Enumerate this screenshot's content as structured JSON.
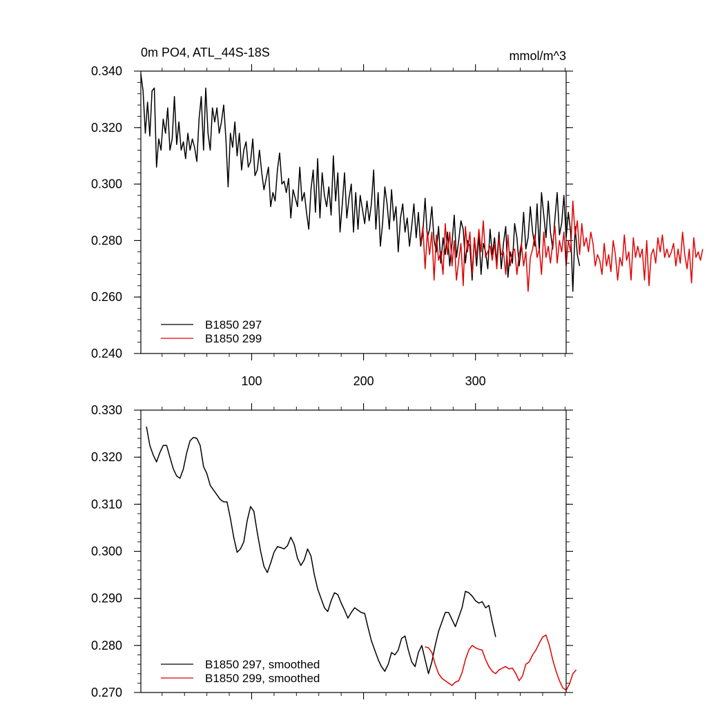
{
  "chart_data": [
    {
      "type": "line",
      "title": "0m PO4, ATL_44S-18S",
      "units": "mmol/m^3",
      "xlim": [
        1,
        381
      ],
      "ylim": [
        0.24,
        0.34
      ],
      "x_ticks": [
        100,
        200,
        300
      ],
      "y_ticks": [
        "0.240",
        "0.260",
        "0.280",
        "0.300",
        "0.320",
        "0.340"
      ],
      "legend_position": "bottom-left",
      "series": [
        {
          "name": "B1850 297",
          "color": "#000000",
          "x_start": 1,
          "x_step": 2,
          "values": [
            0.339,
            0.333,
            0.318,
            0.329,
            0.317,
            0.333,
            0.334,
            0.306,
            0.316,
            0.312,
            0.323,
            0.318,
            0.327,
            0.312,
            0.316,
            0.331,
            0.314,
            0.322,
            0.312,
            0.315,
            0.309,
            0.318,
            0.312,
            0.316,
            0.313,
            0.308,
            0.323,
            0.331,
            0.312,
            0.334,
            0.318,
            0.312,
            0.327,
            0.322,
            0.327,
            0.318,
            0.322,
            0.328,
            0.316,
            0.299,
            0.318,
            0.313,
            0.322,
            0.31,
            0.318,
            0.305,
            0.312,
            0.315,
            0.306,
            0.308,
            0.316,
            0.303,
            0.305,
            0.312,
            0.304,
            0.298,
            0.302,
            0.306,
            0.292,
            0.297,
            0.294,
            0.305,
            0.311,
            0.3,
            0.301,
            0.297,
            0.302,
            0.288,
            0.298,
            0.295,
            0.292,
            0.306,
            0.294,
            0.297,
            0.29,
            0.284,
            0.298,
            0.305,
            0.29,
            0.309,
            0.288,
            0.304,
            0.296,
            0.292,
            0.299,
            0.289,
            0.31,
            0.294,
            0.304,
            0.283,
            0.293,
            0.304,
            0.288,
            0.295,
            0.3,
            0.283,
            0.297,
            0.284,
            0.296,
            0.291,
            0.286,
            0.294,
            0.287,
            0.293,
            0.305,
            0.284,
            0.297,
            0.278,
            0.286,
            0.299,
            0.293,
            0.284,
            0.298,
            0.287,
            0.292,
            0.276,
            0.288,
            0.293,
            0.283,
            0.288,
            0.278,
            0.285,
            0.293,
            0.281,
            0.29,
            0.278,
            0.283,
            0.295,
            0.281,
            0.284,
            0.292,
            0.28,
            0.276,
            0.285,
            0.272,
            0.281,
            0.275,
            0.283,
            0.271,
            0.279,
            0.289,
            0.274,
            0.28,
            0.287,
            0.284,
            0.272,
            0.28,
            0.278,
            0.266,
            0.281,
            0.271,
            0.282,
            0.268,
            0.279,
            0.276,
            0.27,
            0.284,
            0.275,
            0.281,
            0.272,
            0.283,
            0.27,
            0.279,
            0.285,
            0.267,
            0.276,
            0.272,
            0.286,
            0.281,
            0.271,
            0.278,
            0.29,
            0.277,
            0.281,
            0.292,
            0.283,
            0.278,
            0.293,
            0.276,
            0.297,
            0.289,
            0.281,
            0.294,
            0.283,
            0.277,
            0.288,
            0.297,
            0.282,
            0.286,
            0.296,
            0.281,
            0.29,
            0.283,
            0.262,
            0.285,
            0.275,
            0.271
          ]
        },
        {
          "name": "B1850 299",
          "color": "#e00000",
          "x_start": 251,
          "x_step": 2,
          "values": [
            0.279,
            0.285,
            0.27,
            0.283,
            0.275,
            0.283,
            0.266,
            0.282,
            0.273,
            0.276,
            0.268,
            0.286,
            0.275,
            0.283,
            0.271,
            0.28,
            0.266,
            0.273,
            0.279,
            0.264,
            0.285,
            0.276,
            0.283,
            0.268,
            0.281,
            0.274,
            0.284,
            0.276,
            0.287,
            0.274,
            0.276,
            0.278,
            0.273,
            0.279,
            0.27,
            0.281,
            0.275,
            0.276,
            0.268,
            0.282,
            0.271,
            0.276,
            0.277,
            0.268,
            0.275,
            0.279,
            0.271,
            0.276,
            0.262,
            0.274,
            0.277,
            0.282,
            0.274,
            0.277,
            0.268,
            0.283,
            0.274,
            0.278,
            0.272,
            0.279,
            0.285,
            0.272,
            0.28,
            0.276,
            0.283,
            0.271,
            0.28,
            0.276,
            0.294,
            0.282,
            0.287,
            0.275,
            0.286,
            0.278,
            0.281,
            0.276,
            0.283,
            0.279,
            0.271,
            0.275,
            0.273,
            0.268,
            0.279,
            0.271,
            0.275,
            0.269,
            0.28,
            0.275,
            0.266,
            0.274,
            0.271,
            0.282,
            0.273,
            0.276,
            0.266,
            0.281,
            0.274,
            0.278,
            0.274,
            0.277,
            0.266,
            0.28,
            0.264,
            0.275,
            0.277,
            0.272,
            0.281,
            0.276,
            0.282,
            0.274,
            0.277,
            0.274,
            0.276,
            0.279,
            0.271,
            0.277,
            0.272,
            0.283,
            0.275,
            0.27,
            0.277,
            0.265,
            0.281,
            0.274,
            0.276,
            0.273,
            0.277
          ]
        }
      ]
    },
    {
      "type": "line",
      "title": "",
      "xlim": [
        1,
        381
      ],
      "ylim": [
        0.27,
        0.33
      ],
      "y_ticks": [
        "0.270",
        "0.280",
        "0.290",
        "0.300",
        "0.310",
        "0.320",
        "0.330"
      ],
      "legend_position": "bottom-left",
      "series": [
        {
          "name": "B1850 297, smoothed",
          "color": "#000000",
          "points": [
            [
              6,
              0.3265
            ],
            [
              9,
              0.3225
            ],
            [
              12,
              0.3205
            ],
            [
              15,
              0.319
            ],
            [
              18,
              0.321
            ],
            [
              21,
              0.3225
            ],
            [
              24,
              0.3225
            ],
            [
              27,
              0.32
            ],
            [
              30,
              0.3175
            ],
            [
              33,
              0.316
            ],
            [
              36,
              0.3155
            ],
            [
              39,
              0.3175
            ],
            [
              42,
              0.321
            ],
            [
              45,
              0.3235
            ],
            [
              48,
              0.3242
            ],
            [
              51,
              0.324
            ],
            [
              54,
              0.3225
            ],
            [
              57,
              0.318
            ],
            [
              60,
              0.3165
            ],
            [
              63,
              0.314
            ],
            [
              66,
              0.313
            ],
            [
              69,
              0.312
            ],
            [
              72,
              0.311
            ],
            [
              75,
              0.3105
            ],
            [
              78,
              0.3105
            ],
            [
              81,
              0.307
            ],
            [
              84,
              0.303
            ],
            [
              87,
              0.2998
            ],
            [
              90,
              0.3005
            ],
            [
              93,
              0.302
            ],
            [
              96,
              0.3065
            ],
            [
              99,
              0.3095
            ],
            [
              102,
              0.3085
            ],
            [
              105,
              0.304
            ],
            [
              108,
              0.3
            ],
            [
              111,
              0.2968
            ],
            [
              114,
              0.2955
            ],
            [
              117,
              0.2975
            ],
            [
              120,
              0.2998
            ],
            [
              123,
              0.301
            ],
            [
              126,
              0.3008
            ],
            [
              129,
              0.3005
            ],
            [
              132,
              0.3012
            ],
            [
              135,
              0.303
            ],
            [
              138,
              0.3015
            ],
            [
              141,
              0.2985
            ],
            [
              144,
              0.297
            ],
            [
              147,
              0.2982
            ],
            [
              150,
              0.3005
            ],
            [
              153,
              0.299
            ],
            [
              156,
              0.295
            ],
            [
              159,
              0.292
            ],
            [
              162,
              0.29
            ],
            [
              165,
              0.288
            ],
            [
              168,
              0.2872
            ],
            [
              171,
              0.2895
            ],
            [
              174,
              0.2912
            ],
            [
              177,
              0.2908
            ],
            [
              180,
              0.289
            ],
            [
              183,
              0.2875
            ],
            [
              186,
              0.2858
            ],
            [
              189,
              0.287
            ],
            [
              192,
              0.288
            ],
            [
              195,
              0.2875
            ],
            [
              198,
              0.287
            ],
            [
              201,
              0.2868
            ],
            [
              204,
              0.2838
            ],
            [
              207,
              0.281
            ],
            [
              210,
              0.279
            ],
            [
              213,
              0.277
            ],
            [
              216,
              0.2755
            ],
            [
              219,
              0.2745
            ],
            [
              222,
              0.276
            ],
            [
              225,
              0.2785
            ],
            [
              228,
              0.278
            ],
            [
              231,
              0.279
            ],
            [
              234,
              0.2815
            ],
            [
              237,
              0.282
            ],
            [
              240,
              0.279
            ],
            [
              243,
              0.2765
            ],
            [
              246,
              0.2755
            ],
            [
              249,
              0.2785
            ],
            [
              252,
              0.28
            ],
            [
              255,
              0.277
            ],
            [
              258,
              0.274
            ],
            [
              261,
              0.2765
            ],
            [
              264,
              0.28
            ],
            [
              267,
              0.283
            ],
            [
              270,
              0.285
            ],
            [
              273,
              0.287
            ],
            [
              276,
              0.287
            ],
            [
              279,
              0.2855
            ],
            [
              282,
              0.284
            ],
            [
              285,
              0.286
            ],
            [
              288,
              0.288
            ],
            [
              291,
              0.2915
            ],
            [
              294,
              0.2912
            ],
            [
              297,
              0.2905
            ],
            [
              300,
              0.2895
            ],
            [
              303,
              0.289
            ],
            [
              306,
              0.2893
            ],
            [
              309,
              0.288
            ],
            [
              312,
              0.2885
            ],
            [
              315,
              0.285
            ],
            [
              318,
              0.2818
            ]
          ]
        },
        {
          "name": "B1850 299, smoothed",
          "color": "#e00000",
          "points": [
            [
              255,
              0.2797
            ],
            [
              258,
              0.2795
            ],
            [
              261,
              0.2785
            ],
            [
              264,
              0.276
            ],
            [
              267,
              0.274
            ],
            [
              270,
              0.273
            ],
            [
              273,
              0.2725
            ],
            [
              276,
              0.272
            ],
            [
              279,
              0.2715
            ],
            [
              282,
              0.2722
            ],
            [
              285,
              0.2725
            ],
            [
              288,
              0.2742
            ],
            [
              291,
              0.277
            ],
            [
              294,
              0.279
            ],
            [
              297,
              0.28
            ],
            [
              300,
              0.2795
            ],
            [
              303,
              0.2792
            ],
            [
              306,
              0.279
            ],
            [
              309,
              0.277
            ],
            [
              312,
              0.2755
            ],
            [
              315,
              0.2745
            ],
            [
              318,
              0.274
            ],
            [
              321,
              0.2748
            ],
            [
              324,
              0.2752
            ],
            [
              327,
              0.2755
            ],
            [
              330,
              0.275
            ],
            [
              333,
              0.2752
            ],
            [
              336,
              0.274
            ],
            [
              339,
              0.2725
            ],
            [
              342,
              0.2735
            ],
            [
              345,
              0.276
            ],
            [
              348,
              0.2765
            ],
            [
              351,
              0.278
            ],
            [
              354,
              0.279
            ],
            [
              357,
              0.2805
            ],
            [
              360,
              0.2818
            ],
            [
              363,
              0.2822
            ],
            [
              366,
              0.28
            ],
            [
              369,
              0.277
            ],
            [
              372,
              0.2745
            ],
            [
              375,
              0.2725
            ],
            [
              378,
              0.271
            ],
            [
              381,
              0.2705
            ],
            [
              384,
              0.2718
            ],
            [
              387,
              0.274
            ],
            [
              390,
              0.2748
            ]
          ]
        }
      ]
    }
  ]
}
